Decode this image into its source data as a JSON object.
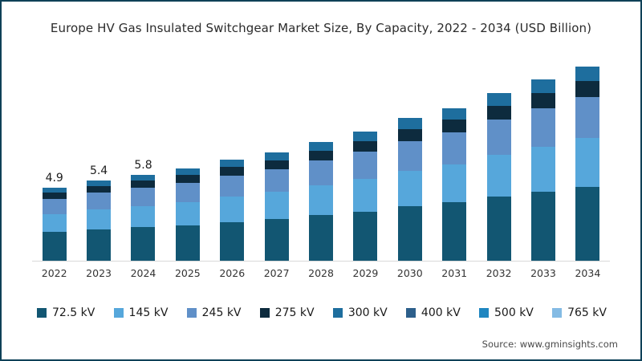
{
  "chart_data": {
    "type": "bar",
    "stacked": true,
    "title": "Europe HV Gas Insulated Switchgear Market Size, By Capacity, 2022 - 2034 (USD Billion)",
    "categories": [
      "2022",
      "2023",
      "2024",
      "2025",
      "2026",
      "2027",
      "2028",
      "2029",
      "2030",
      "2031",
      "2032",
      "2033",
      "2034"
    ],
    "series": [
      {
        "name": "72.5 kV",
        "color": "#125672",
        "values": [
          1.95,
          2.1,
          2.25,
          2.4,
          2.62,
          2.8,
          3.06,
          3.32,
          3.65,
          3.92,
          4.3,
          4.64,
          4.98
        ]
      },
      {
        "name": "145 kV",
        "color": "#56a7db",
        "values": [
          1.2,
          1.35,
          1.45,
          1.55,
          1.7,
          1.83,
          2.0,
          2.18,
          2.4,
          2.58,
          2.83,
          3.05,
          3.28
        ]
      },
      {
        "name": "245 kV",
        "color": "#6090c8",
        "values": [
          1.0,
          1.12,
          1.2,
          1.29,
          1.42,
          1.53,
          1.68,
          1.83,
          2.02,
          2.16,
          2.37,
          2.56,
          2.75
        ]
      },
      {
        "name": "275 kV",
        "color": "#0d2b3e",
        "values": [
          0.42,
          0.46,
          0.5,
          0.53,
          0.58,
          0.62,
          0.69,
          0.74,
          0.82,
          0.88,
          0.96,
          1.04,
          1.12
        ]
      },
      {
        "name": "300 kV",
        "color": "#1e6e9e",
        "values": [
          0.33,
          0.37,
          0.4,
          0.43,
          0.48,
          0.52,
          0.57,
          0.63,
          0.71,
          0.76,
          0.84,
          0.91,
          0.97
        ]
      },
      {
        "name": "400 kV",
        "color": "#2d5f8b",
        "values": [
          0,
          0,
          0,
          0,
          0,
          0,
          0,
          0,
          0,
          0,
          0,
          0,
          0
        ]
      },
      {
        "name": "500 kV",
        "color": "#1f86c0",
        "values": [
          0,
          0,
          0,
          0,
          0,
          0,
          0,
          0,
          0,
          0,
          0,
          0,
          0
        ]
      },
      {
        "name": "765 kV",
        "color": "#84bbe4",
        "values": [
          0,
          0,
          0,
          0,
          0,
          0,
          0,
          0,
          0,
          0,
          0,
          0,
          0
        ]
      }
    ],
    "bar_labels": [
      "4.9",
      "5.4",
      "5.8",
      "",
      "",
      "",
      "",
      "",
      "",
      "",
      "",
      "",
      ""
    ],
    "totals": [
      4.9,
      5.4,
      5.8,
      6.2,
      6.8,
      7.3,
      8.0,
      8.7,
      9.6,
      10.3,
      11.3,
      12.2,
      13.1
    ],
    "xlabel": "",
    "ylabel": "",
    "ylim": [
      0,
      14
    ],
    "grid": false,
    "legend_position": "bottom"
  },
  "source": "Source: www.gminsights.com"
}
